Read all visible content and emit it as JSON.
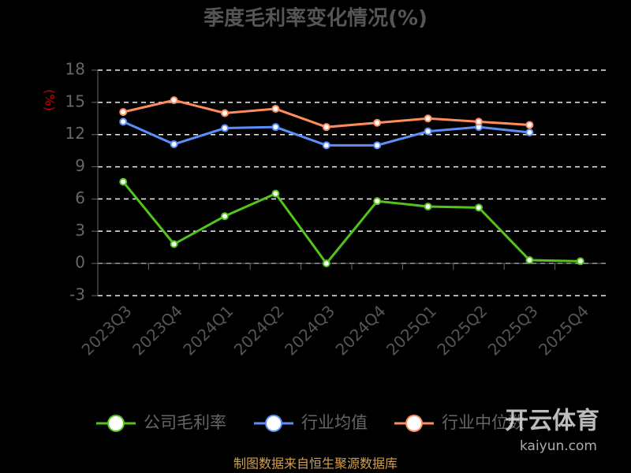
{
  "chart_data": {
    "type": "line",
    "title": "季度毛利率变化情况(%)",
    "y_label": "(%)",
    "categories": [
      "2023Q3",
      "2023Q4",
      "2024Q1",
      "2024Q2",
      "2024Q3",
      "2024Q4",
      "2025Q1",
      "2025Q2",
      "2025Q3",
      "2025Q4"
    ],
    "series": [
      {
        "name": "公司毛利率",
        "color": "#52c41a",
        "values": [
          7.6,
          1.8,
          4.4,
          6.5,
          0.0,
          5.8,
          5.3,
          5.2,
          0.3,
          0.2
        ]
      },
      {
        "name": "行业均值",
        "color": "#5b8ff9",
        "values": [
          13.2,
          11.1,
          12.6,
          12.7,
          11.0,
          11.0,
          12.3,
          12.7,
          12.2,
          null
        ]
      },
      {
        "name": "行业中位数",
        "color": "#ff8c5a",
        "values": [
          14.1,
          15.2,
          14.0,
          14.4,
          12.7,
          13.1,
          13.5,
          13.2,
          12.9,
          null
        ]
      }
    ],
    "ylim": [
      -3,
      18
    ],
    "yticks": [
      -3,
      0,
      3,
      6,
      9,
      12,
      15,
      18
    ],
    "grid": true,
    "source": "制图数据来自恒生聚源数据库",
    "watermark": {
      "brand": "开云体育",
      "site": "kaiyun.com"
    }
  }
}
